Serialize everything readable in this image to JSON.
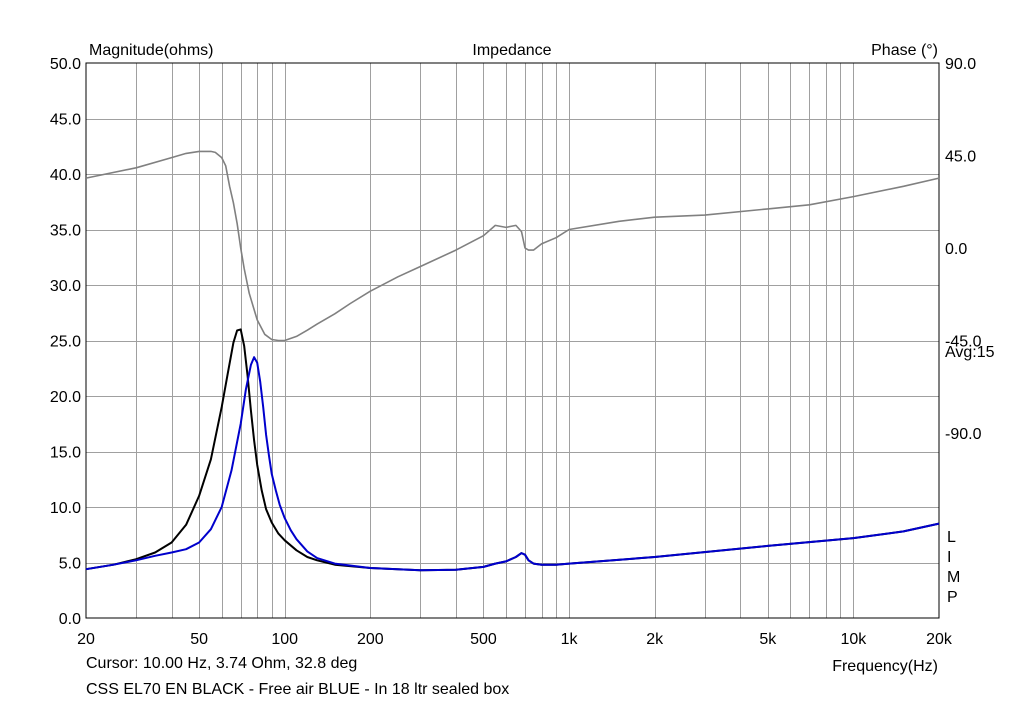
{
  "chart_data": {
    "type": "line",
    "title": "Impedance",
    "y_left_label": "Magnitude(ohms)",
    "y_right_label": "Phase (°)",
    "xlabel": "Frequency(Hz)",
    "x_scale": "log",
    "xlim": [
      20,
      20000
    ],
    "ylim_left": [
      0,
      50
    ],
    "ylim_right_phase": [
      -180,
      90
    ],
    "grid": true,
    "x_ticks": [
      {
        "value": 20,
        "label": "20"
      },
      {
        "value": 50,
        "label": "50"
      },
      {
        "value": 100,
        "label": "100"
      },
      {
        "value": 200,
        "label": "200"
      },
      {
        "value": 500,
        "label": "500"
      },
      {
        "value": 1000,
        "label": "1k"
      },
      {
        "value": 2000,
        "label": "2k"
      },
      {
        "value": 5000,
        "label": "5k"
      },
      {
        "value": 10000,
        "label": "10k"
      },
      {
        "value": 20000,
        "label": "20k"
      }
    ],
    "y_left_ticks": [
      {
        "value": 50,
        "label": "50.0"
      },
      {
        "value": 45,
        "label": "45.0"
      },
      {
        "value": 40,
        "label": "40.0"
      },
      {
        "value": 35,
        "label": "35.0"
      },
      {
        "value": 30,
        "label": "30.0"
      },
      {
        "value": 25,
        "label": "25.0"
      },
      {
        "value": 20,
        "label": "20.0"
      },
      {
        "value": 15,
        "label": "15.0"
      },
      {
        "value": 10,
        "label": "10.0"
      },
      {
        "value": 5,
        "label": "5.0"
      },
      {
        "value": 0,
        "label": "0.0"
      }
    ],
    "y_right_ticks": [
      {
        "value": 90,
        "label": "90.0"
      },
      {
        "value": 45,
        "label": "45.0"
      },
      {
        "value": 0,
        "label": "0.0"
      },
      {
        "value": -45,
        "label": "-45.0"
      },
      {
        "value": -90,
        "label": "-90.0"
      }
    ],
    "avg_label": "Avg:15",
    "side_label_letters": [
      "L",
      "I",
      "M",
      "P"
    ],
    "series": [
      {
        "name": "EN BLACK - Free air",
        "color": "#000000",
        "axis": "left",
        "x": [
          20,
          25,
          30,
          35,
          40,
          45,
          50,
          55,
          60,
          63,
          66,
          68,
          70,
          72,
          74,
          76,
          78,
          80,
          83,
          86,
          90,
          95,
          100,
          110,
          120,
          130,
          150,
          200,
          300,
          400,
          500,
          550,
          600,
          650,
          680,
          700,
          720,
          750,
          800,
          900,
          1000,
          2000,
          5000,
          10000,
          15000,
          20000
        ],
        "values": [
          4.4,
          4.8,
          5.3,
          5.9,
          6.8,
          8.4,
          11.0,
          14.3,
          19.0,
          22.0,
          24.8,
          25.9,
          26.0,
          24.5,
          21.8,
          18.7,
          16.0,
          13.8,
          11.5,
          9.8,
          8.6,
          7.6,
          7.0,
          6.1,
          5.5,
          5.2,
          4.8,
          4.5,
          4.3,
          4.35,
          4.6,
          4.9,
          5.1,
          5.5,
          5.85,
          5.7,
          5.2,
          4.9,
          4.8,
          4.8,
          4.9,
          5.5,
          6.5,
          7.2,
          7.8,
          8.5
        ]
      },
      {
        "name": "BLUE - In 18 ltr sealed box",
        "color": "#0000cc",
        "axis": "left",
        "x": [
          20,
          25,
          30,
          35,
          40,
          45,
          50,
          55,
          60,
          65,
          70,
          73,
          76,
          78,
          80,
          82,
          84,
          86,
          88,
          90,
          93,
          96,
          100,
          105,
          110,
          120,
          130,
          150,
          200,
          300,
          400,
          500,
          550,
          600,
          650,
          680,
          700,
          720,
          750,
          800,
          900,
          1000,
          2000,
          5000,
          10000,
          15000,
          20000
        ],
        "values": [
          4.4,
          4.8,
          5.2,
          5.6,
          5.9,
          6.2,
          6.8,
          8.0,
          10.0,
          13.3,
          17.5,
          20.6,
          22.8,
          23.5,
          23.0,
          21.3,
          19.0,
          16.5,
          14.6,
          13.0,
          11.5,
          10.2,
          9.0,
          7.9,
          7.1,
          6.0,
          5.4,
          4.9,
          4.5,
          4.3,
          4.35,
          4.6,
          4.9,
          5.1,
          5.5,
          5.85,
          5.7,
          5.2,
          4.9,
          4.8,
          4.8,
          4.9,
          5.5,
          6.5,
          7.2,
          7.8,
          8.5
        ]
      },
      {
        "name": "Phase",
        "color": "#808080",
        "axis": "right",
        "x": [
          20,
          30,
          40,
          45,
          50,
          55,
          57,
          60,
          62,
          64,
          66,
          68,
          70,
          72,
          75,
          80,
          85,
          90,
          95,
          100,
          110,
          120,
          130,
          150,
          170,
          200,
          250,
          300,
          400,
          500,
          550,
          600,
          650,
          680,
          700,
          720,
          750,
          800,
          900,
          1000,
          1500,
          2000,
          3000,
          5000,
          7000,
          10000,
          15000,
          20000
        ],
        "values": [
          34.0,
          39.0,
          44.0,
          46.0,
          47.0,
          47.0,
          46.5,
          44.0,
          40.0,
          30.0,
          22.0,
          12.0,
          0.0,
          -10.0,
          -22.0,
          -35.0,
          -42.0,
          -44.5,
          -45.0,
          -45.0,
          -43.0,
          -40.0,
          -37.0,
          -32.0,
          -27.0,
          -21.0,
          -14.0,
          -9.0,
          -1.0,
          6.0,
          11.0,
          10.0,
          11.0,
          8.0,
          0.0,
          -1.0,
          -1.0,
          2.0,
          5.0,
          9.0,
          13.0,
          15.0,
          16.0,
          19.0,
          21.0,
          25.0,
          30.0,
          34.0
        ]
      }
    ]
  },
  "footer": {
    "cursor_readout": "Cursor: 10.00 Hz, 3.74 Ohm, 32.8 deg",
    "legend_caption": "CSS EL70 EN BLACK - Free air BLUE - In 18 ltr sealed box"
  }
}
